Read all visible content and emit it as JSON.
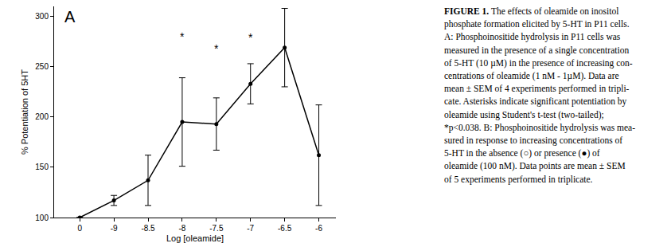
{
  "chart_data": {
    "type": "line",
    "x_label": "Log [oleamide]",
    "y_label": "% Potentiation of 5HT",
    "categories": [
      "0",
      "-9",
      "-8.5",
      "-8",
      "-7.5",
      "-7",
      "-6.5",
      "-6"
    ],
    "values": [
      100,
      117,
      137,
      195,
      193,
      233,
      269,
      162
    ],
    "errors": [
      0,
      5,
      25,
      44,
      26,
      20,
      39,
      50
    ],
    "color": "#000000",
    "marker": "circle",
    "ylim": [
      100,
      310
    ],
    "yticks": [
      100,
      150,
      200,
      250,
      300
    ],
    "grid": false,
    "annotations": [
      {
        "text": "A"
      },
      {
        "text": "*",
        "x": "-8",
        "y": 280
      },
      {
        "text": "*",
        "x": "-7.5",
        "y": 268
      },
      {
        "text": "*",
        "x": "-7",
        "y": 279
      }
    ]
  },
  "caption": {
    "label": "FIGURE 1.",
    "lines": [
      "The effects of oleamide on inositol",
      "phosphate formation elicited by 5-HT in P11 cells.",
      "A: Phosphoinositide hydrolysis in P11 cells was",
      "measured in the presence of a single concentration",
      "of 5-HT (10 µM) in the presence of increasing con-",
      "centrations of oleamide (1 nM - 1µM). Data are",
      "mean ± SEM of 4 experiments performed in tripli-",
      "cate. Asterisks indicate significant potentiation by",
      "oleamide using Student's t-test (two-tailed);",
      "*p<0.038. B: Phosphoinositide hydrolysis was mea-",
      "sured in response to increasing concentrations of",
      "5-HT in the absence (○) or presence (●) of",
      "oleamide (100 nM). Data points are mean ± SEM",
      "of 5 experiments performed in triplicate."
    ]
  }
}
